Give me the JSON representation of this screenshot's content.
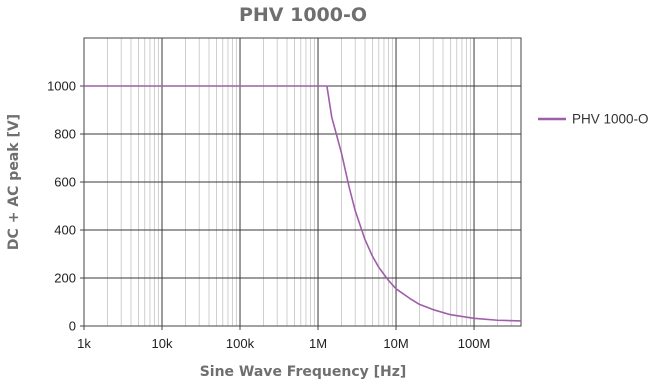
{
  "chart_data": {
    "type": "line",
    "title": "PHV 1000-O",
    "xlabel": "Sine Wave Frequency [Hz]",
    "ylabel": "DC + AC peak [V]",
    "xscale": "log",
    "xlim": [
      1000,
      400000000
    ],
    "ylim": [
      0,
      1200
    ],
    "grid": true,
    "legend_position": "right",
    "xticks": [
      {
        "value": 1000,
        "label": "1k"
      },
      {
        "value": 10000,
        "label": "10k"
      },
      {
        "value": 100000,
        "label": "100k"
      },
      {
        "value": 1000000,
        "label": "1M"
      },
      {
        "value": 10000000,
        "label": "10M"
      },
      {
        "value": 100000000,
        "label": "100M"
      }
    ],
    "yticks": [
      {
        "value": 0,
        "label": "0"
      },
      {
        "value": 200,
        "label": "200"
      },
      {
        "value": 400,
        "label": "400"
      },
      {
        "value": 600,
        "label": "600"
      },
      {
        "value": 800,
        "label": "800"
      },
      {
        "value": 1000,
        "label": "1000"
      }
    ],
    "series": [
      {
        "name": "PHV 1000-O",
        "color": "#9e5fa8",
        "x": [
          1000,
          10000,
          100000,
          1000000,
          1300000,
          1500000,
          2000000,
          2500000,
          3000000,
          4000000,
          5000000,
          6000000,
          7000000,
          8000000,
          10000000,
          15000000,
          20000000,
          30000000,
          50000000,
          100000000,
          200000000,
          400000000
        ],
        "y": [
          1000,
          1000,
          1000,
          1000,
          1000,
          870,
          720,
          580,
          480,
          360,
          290,
          245,
          215,
          190,
          155,
          115,
          90,
          68,
          47,
          32,
          24,
          21
        ]
      }
    ]
  }
}
